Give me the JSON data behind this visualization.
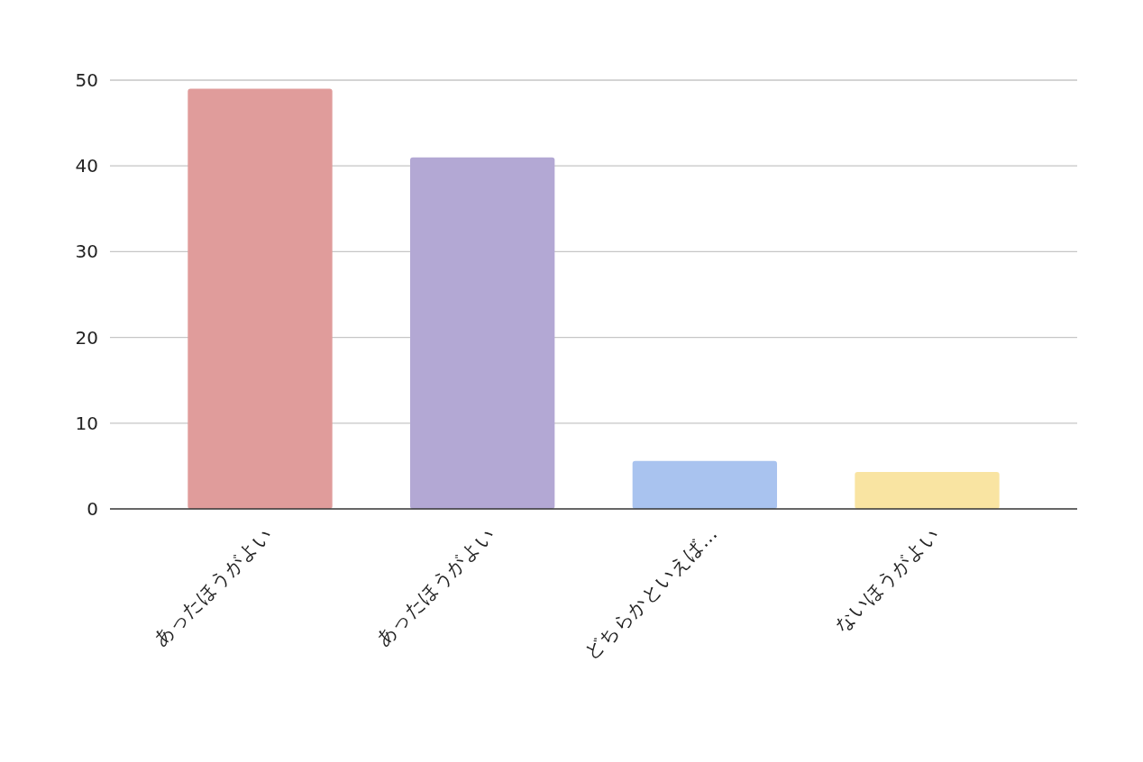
{
  "chart_data": {
    "type": "bar",
    "categories": [
      "あったほうがよい",
      "あったほうがよい",
      "どちらかといえば…",
      "ないほうがよい"
    ],
    "values": [
      49,
      41,
      5.6,
      4.3
    ],
    "colors": [
      "#e09c9b",
      "#b3a8d4",
      "#a9c3ef",
      "#f9e4a2"
    ],
    "ylim": [
      0,
      50
    ],
    "yticks": [
      0,
      10,
      20,
      30,
      40,
      50
    ],
    "grid": "y"
  }
}
